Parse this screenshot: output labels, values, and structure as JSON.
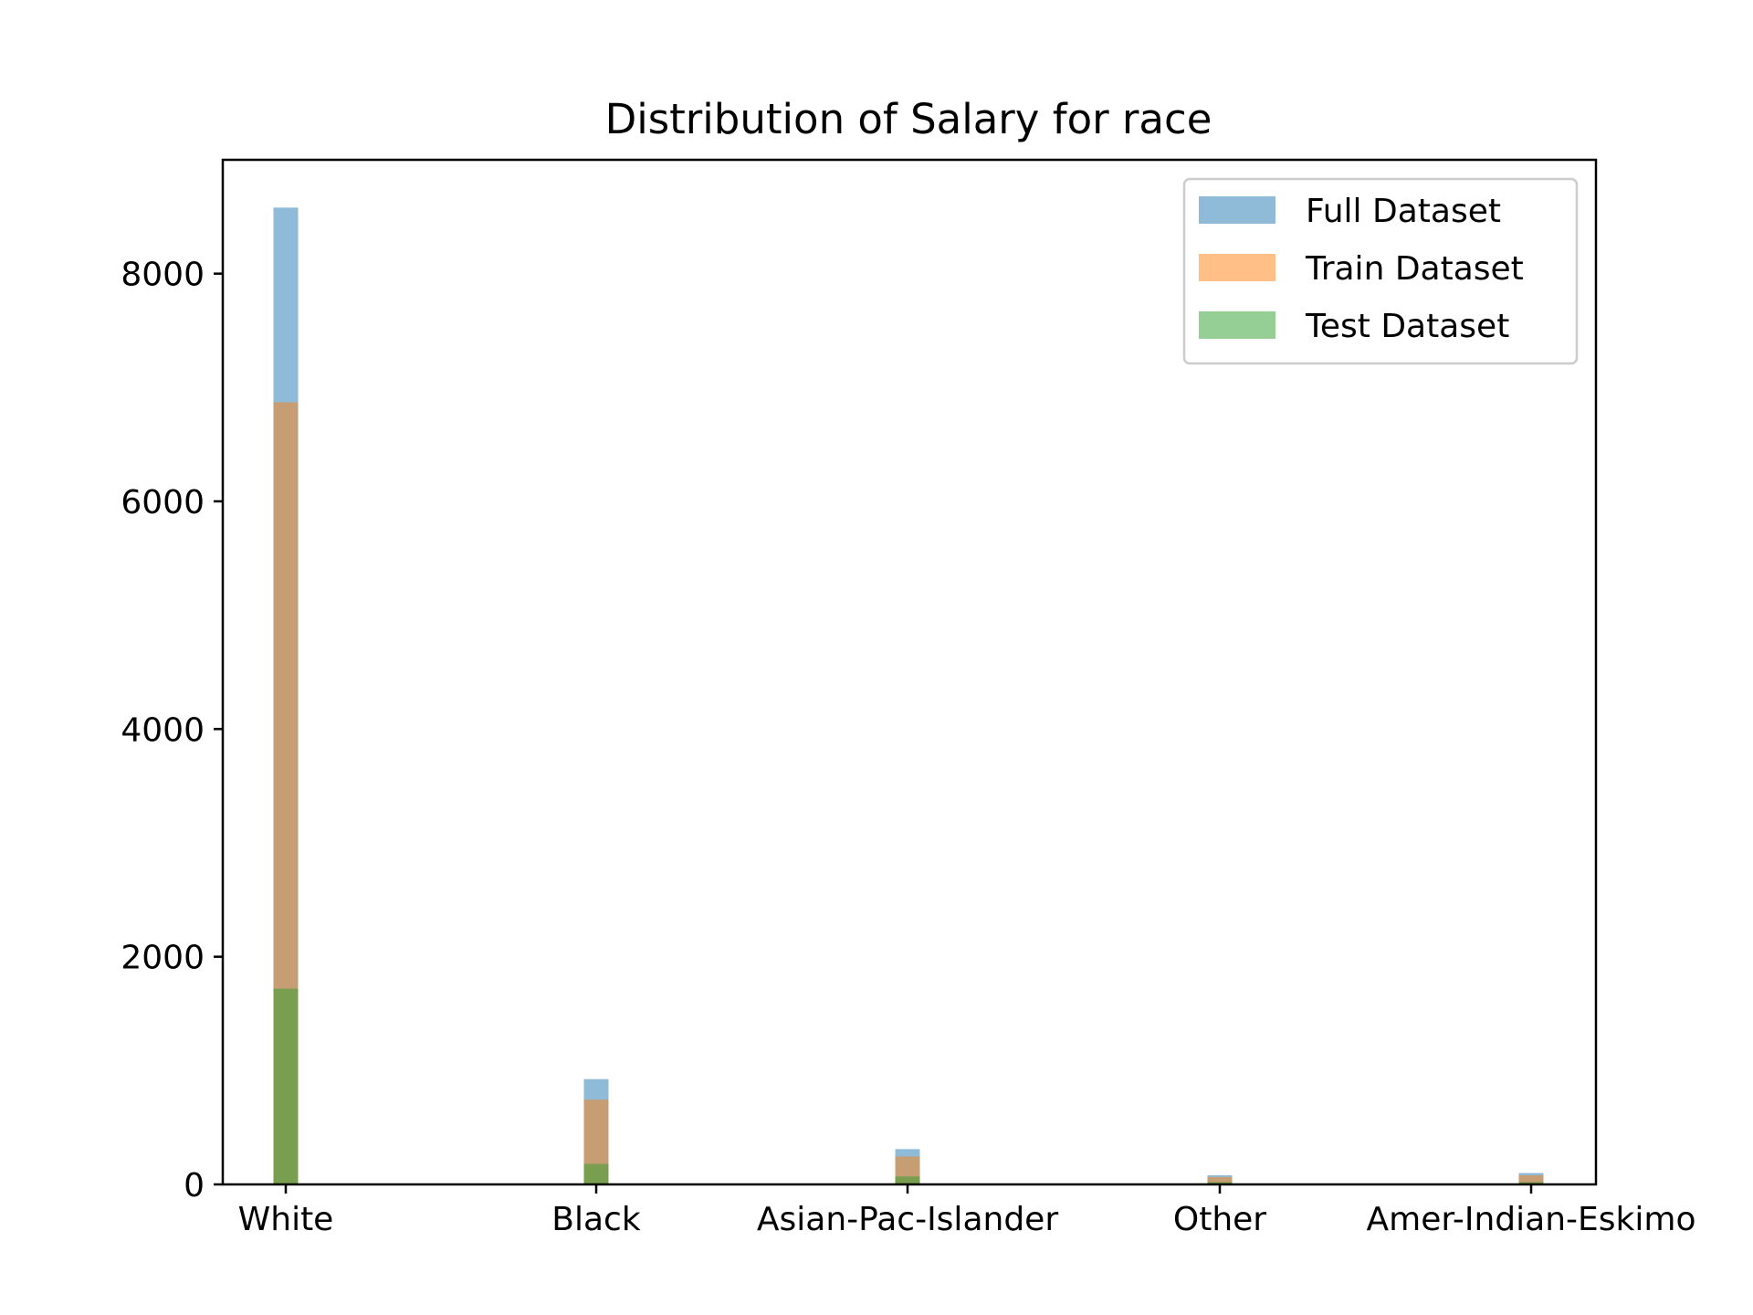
{
  "chart_data": {
    "type": "bar",
    "title": "Distribution of Salary for race",
    "xlabel": "",
    "ylabel": "",
    "categories": [
      "White",
      "Black",
      "Asian-Pac-Islander",
      "Other",
      "Amer-Indian-Eskimo"
    ],
    "series": [
      {
        "name": "Full Dataset",
        "color": "#1f77b4",
        "values": [
          8580,
          925,
          310,
          80,
          100
        ]
      },
      {
        "name": "Train Dataset",
        "color": "#ff7f0e",
        "values": [
          6870,
          745,
          245,
          65,
          80
        ]
      },
      {
        "name": "Test Dataset",
        "color": "#2ca02c",
        "values": [
          1720,
          180,
          70,
          20,
          20
        ]
      }
    ],
    "ylim": [
      0,
      9000
    ],
    "yticks": [
      0,
      2000,
      4000,
      6000,
      8000
    ],
    "bar_opacity": 0.5,
    "grid": false,
    "legend_position": "top-right"
  }
}
